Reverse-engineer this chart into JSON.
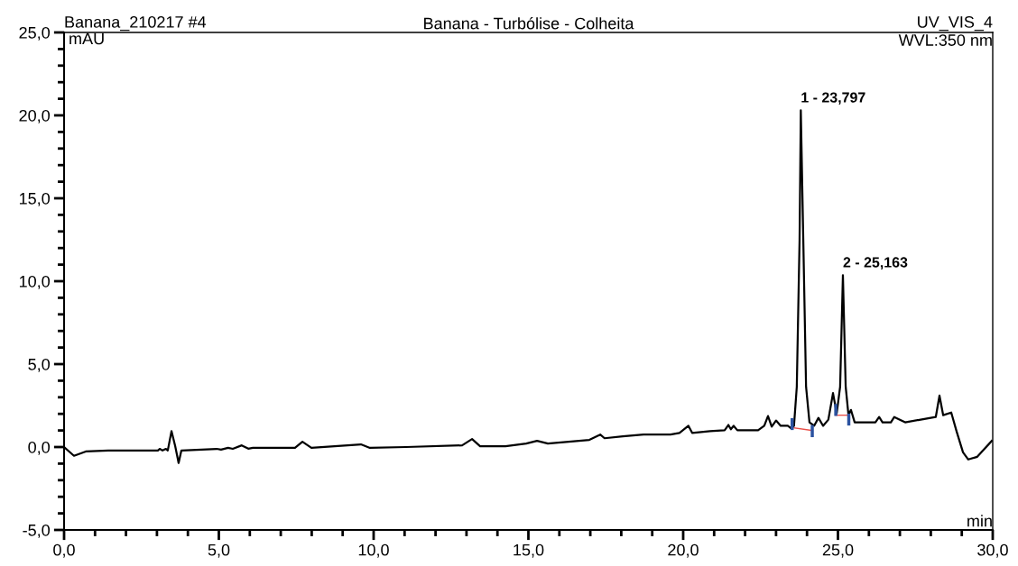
{
  "chart_data": {
    "type": "line",
    "title": "Banana - Turbólise - Colheita",
    "xlabel": "min",
    "ylabel": "mAU",
    "annotations": [
      "Banana_210217 #4",
      "UV_VIS_4",
      "WVL:350 nm",
      {
        "text": "1 - 23,797",
        "x": 23.8,
        "y": 20.3
      },
      {
        "text": "2 - 25,163",
        "x": 25.16,
        "y": 10.36
      }
    ],
    "xlim": [
      0,
      30
    ],
    "ylim": [
      -5,
      25
    ],
    "xticks": [
      {
        "value": 0,
        "label": "0,0"
      },
      {
        "value": 1,
        "label": null
      },
      {
        "value": 2,
        "label": null
      },
      {
        "value": 3,
        "label": null
      },
      {
        "value": 4,
        "label": null
      },
      {
        "value": 5,
        "label": "5,0"
      },
      {
        "value": 6,
        "label": null
      },
      {
        "value": 7,
        "label": null
      },
      {
        "value": 8,
        "label": null
      },
      {
        "value": 9,
        "label": null
      },
      {
        "value": 10,
        "label": "10,0"
      },
      {
        "value": 11,
        "label": null
      },
      {
        "value": 12,
        "label": null
      },
      {
        "value": 13,
        "label": null
      },
      {
        "value": 14,
        "label": null
      },
      {
        "value": 15,
        "label": "15,0"
      },
      {
        "value": 16,
        "label": null
      },
      {
        "value": 17,
        "label": null
      },
      {
        "value": 18,
        "label": null
      },
      {
        "value": 19,
        "label": null
      },
      {
        "value": 20,
        "label": "20,0"
      },
      {
        "value": 21,
        "label": null
      },
      {
        "value": 22,
        "label": null
      },
      {
        "value": 23,
        "label": null
      },
      {
        "value": 24,
        "label": null
      },
      {
        "value": 25,
        "label": "25,0"
      },
      {
        "value": 26,
        "label": null
      },
      {
        "value": 27,
        "label": null
      },
      {
        "value": 28,
        "label": null
      },
      {
        "value": 29,
        "label": null
      },
      {
        "value": 30,
        "label": "30,0"
      }
    ],
    "yticks": [
      {
        "value": -5,
        "label": "-5,0"
      },
      {
        "value": -4,
        "label": null
      },
      {
        "value": -3,
        "label": null
      },
      {
        "value": -2,
        "label": null
      },
      {
        "value": -1,
        "label": null
      },
      {
        "value": 0,
        "label": "0,0"
      },
      {
        "value": 1,
        "label": null
      },
      {
        "value": 2,
        "label": null
      },
      {
        "value": 3,
        "label": null
      },
      {
        "value": 4,
        "label": null
      },
      {
        "value": 5,
        "label": "5,0"
      },
      {
        "value": 6,
        "label": null
      },
      {
        "value": 7,
        "label": null
      },
      {
        "value": 8,
        "label": null
      },
      {
        "value": 9,
        "label": null
      },
      {
        "value": 10,
        "label": "10,0"
      },
      {
        "value": 11,
        "label": null
      },
      {
        "value": 12,
        "label": null
      },
      {
        "value": 13,
        "label": null
      },
      {
        "value": 14,
        "label": null
      },
      {
        "value": 15,
        "label": "15,0"
      },
      {
        "value": 16,
        "label": null
      },
      {
        "value": 17,
        "label": null
      },
      {
        "value": 18,
        "label": null
      },
      {
        "value": 19,
        "label": null
      },
      {
        "value": 20,
        "label": "20,0"
      },
      {
        "value": 21,
        "label": null
      },
      {
        "value": 22,
        "label": null
      },
      {
        "value": 23,
        "label": null
      },
      {
        "value": 24,
        "label": null
      },
      {
        "value": 25,
        "label": "25,0"
      }
    ],
    "grid": false,
    "legend": false,
    "marker": "none",
    "line_style": "solid",
    "series": [
      {
        "color": "#000000",
        "x": [
          0,
          0.32,
          0.7,
          1.43,
          3.03,
          3.09,
          3.18,
          3.29,
          3.35,
          3.47,
          3.59,
          3.7,
          3.79,
          4.93,
          5.07,
          5.3,
          5.45,
          5.74,
          5.95,
          6.1,
          7.46,
          7.7,
          7.99,
          9.59,
          9.88,
          11.05,
          12.86,
          13.18,
          13.44,
          14.26,
          14.93,
          15.28,
          15.63,
          16.97,
          17.32,
          17.46,
          18.05,
          18.72,
          19.59,
          19.88,
          20.17,
          20.29,
          20.87,
          21.34,
          21.46,
          21.54,
          21.63,
          21.75,
          22.42,
          22.62,
          22.74,
          22.86,
          23.0,
          23.15,
          23.38,
          23.49,
          23.58,
          23.67,
          23.76,
          23.8,
          23.88,
          23.97,
          24.08,
          24.23,
          24.37,
          24.52,
          24.69,
          24.84,
          24.96,
          25.07,
          25.16,
          25.25,
          25.34,
          25.42,
          25.54,
          25.83,
          26.21,
          26.33,
          26.44,
          26.71,
          26.82,
          27.0,
          27.17,
          27.67,
          28.16,
          28.28,
          28.4,
          28.66,
          28.83,
          29.04,
          29.21,
          29.5,
          29.97
        ],
        "values": [
          0,
          -0.53,
          -0.27,
          -0.21,
          -0.21,
          -0.11,
          -0.21,
          -0.11,
          -0.21,
          0.96,
          0.05,
          -0.96,
          -0.21,
          -0.11,
          -0.16,
          -0.05,
          -0.11,
          0.1,
          -0.1,
          -0.05,
          -0.05,
          0.32,
          -0.05,
          0.16,
          -0.05,
          0,
          0.1,
          0.48,
          0.05,
          0.05,
          0.21,
          0.37,
          0.21,
          0.43,
          0.75,
          0.53,
          0.64,
          0.75,
          0.75,
          0.85,
          1.28,
          0.85,
          0.96,
          1.01,
          1.33,
          1.07,
          1.28,
          1.01,
          1.01,
          1.28,
          1.87,
          1.23,
          1.6,
          1.28,
          1.28,
          1.12,
          1.28,
          3.63,
          12.5,
          20.3,
          12.5,
          3.63,
          1.49,
          1.28,
          1.76,
          1.28,
          1.65,
          3.25,
          2.03,
          3.63,
          10.36,
          3.63,
          1.92,
          2.24,
          1.49,
          1.49,
          1.49,
          1.81,
          1.49,
          1.49,
          1.81,
          1.65,
          1.49,
          1.65,
          1.81,
          3.1,
          1.92,
          2.08,
          0.96,
          -0.32,
          -0.75,
          -0.59,
          0.37
        ]
      },
      {
        "color": "#e8504a",
        "x": [
          23.52,
          24.17
        ],
        "values": [
          1.17,
          1.0
        ]
      },
      {
        "color": "#e8504a",
        "x": [
          24.93,
          25.35
        ],
        "values": [
          1.92,
          1.92
        ]
      },
      {
        "color": "#2b52a0",
        "x": [
          23.52,
          23.52
        ],
        "values": [
          1.12,
          1.65
        ]
      },
      {
        "color": "#2b52a0",
        "x": [
          24.17,
          24.17
        ],
        "values": [
          0.69,
          1.23
        ]
      },
      {
        "color": "#2b52a0",
        "x": [
          24.93,
          24.93
        ],
        "values": [
          1.97,
          2.5
        ]
      },
      {
        "color": "#2b52a0",
        "x": [
          25.35,
          25.35
        ],
        "values": [
          1.39,
          1.92
        ]
      }
    ]
  }
}
